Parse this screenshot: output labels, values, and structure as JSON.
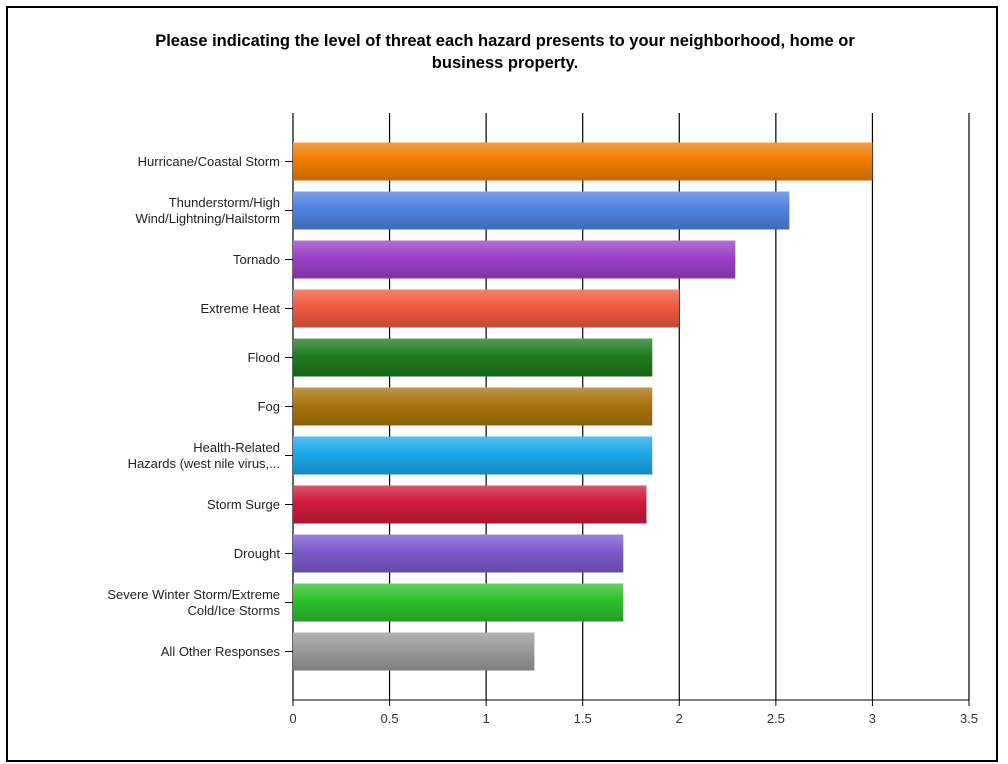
{
  "chart_data": {
    "type": "bar",
    "orientation": "horizontal",
    "title_lines": [
      "Please indicating the level of threat each hazard presents to your neighborhood, home or",
      "business property."
    ],
    "categories": [
      [
        "Hurricane/Coastal Storm"
      ],
      [
        "Thunderstorm/High",
        "Wind/Lightning/Hailstorm"
      ],
      [
        "Tornado"
      ],
      [
        "Extreme Heat"
      ],
      [
        "Flood"
      ],
      [
        "Fog"
      ],
      [
        "Health-Related",
        "Hazards (west nile virus,..."
      ],
      [
        "Storm Surge"
      ],
      [
        "Drought"
      ],
      [
        "Severe Winter Storm/Extreme",
        "Cold/Ice Storms"
      ],
      [
        "All Other Responses"
      ]
    ],
    "values": [
      3.0,
      2.57,
      2.29,
      2.0,
      1.86,
      1.86,
      1.86,
      1.83,
      1.71,
      1.71,
      1.25
    ],
    "colors": [
      "#f07d00",
      "#4f81e0",
      "#9b3fc8",
      "#ee5a3e",
      "#1e7a1e",
      "#a8740a",
      "#1ba8ea",
      "#d01a3a",
      "#7a5acc",
      "#2cc02c",
      "#9a9a9a"
    ],
    "xlim": [
      0,
      3.5
    ],
    "xticks": [
      "0",
      "0.5",
      "1",
      "1.5",
      "2",
      "2.5",
      "3",
      "3.5"
    ],
    "grid": "vertical",
    "legend": "none"
  }
}
